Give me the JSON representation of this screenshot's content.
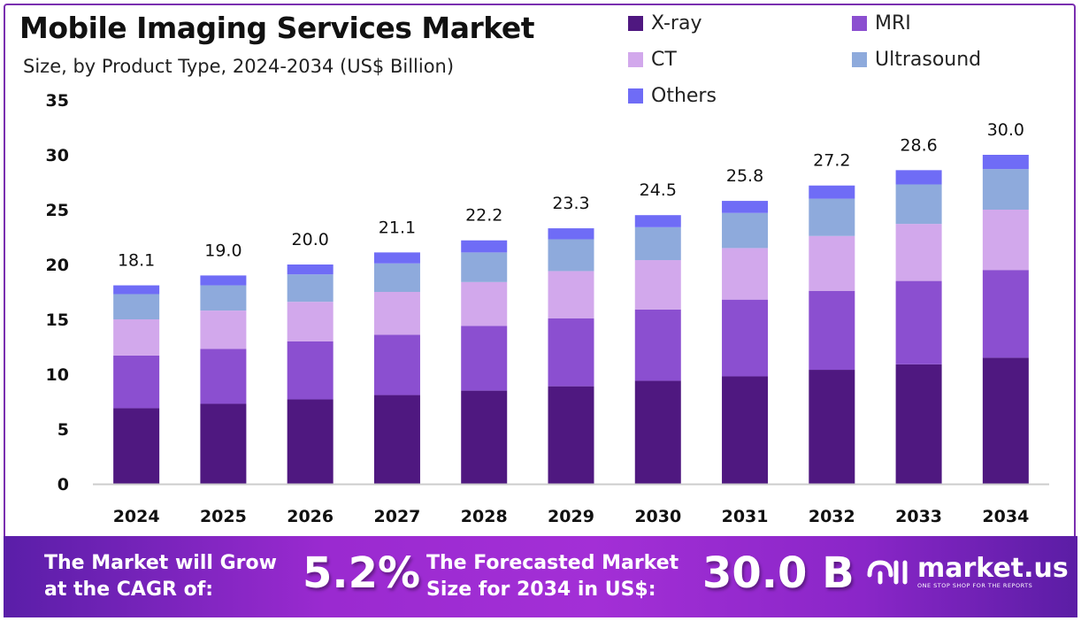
{
  "chart_data": {
    "type": "bar",
    "stacked": true,
    "title": "Mobile Imaging Services Market",
    "subtitle": "Size, by Product Type, 2024-2034 (US$ Billion)",
    "categories": [
      "2024",
      "2025",
      "2026",
      "2027",
      "2028",
      "2029",
      "2030",
      "2031",
      "2032",
      "2033",
      "2034"
    ],
    "series": [
      {
        "name": "X-ray",
        "color": "#4f1880",
        "values": [
          6.9,
          7.3,
          7.7,
          8.1,
          8.5,
          8.9,
          9.4,
          9.8,
          10.4,
          10.9,
          11.5
        ]
      },
      {
        "name": "MRI",
        "color": "#8b4fd0",
        "values": [
          4.8,
          5.0,
          5.3,
          5.5,
          5.9,
          6.2,
          6.5,
          7.0,
          7.2,
          7.6,
          8.0
        ]
      },
      {
        "name": "CT",
        "color": "#d2a8ec",
        "values": [
          3.3,
          3.5,
          3.6,
          3.9,
          4.0,
          4.3,
          4.5,
          4.7,
          5.0,
          5.2,
          5.5
        ]
      },
      {
        "name": "Ultrasound",
        "color": "#8eaadc",
        "values": [
          2.3,
          2.3,
          2.5,
          2.6,
          2.7,
          2.9,
          3.0,
          3.2,
          3.4,
          3.6,
          3.7
        ]
      },
      {
        "name": "Others",
        "color": "#6f6cf6",
        "values": [
          0.8,
          0.9,
          0.9,
          1.0,
          1.1,
          1.0,
          1.1,
          1.1,
          1.2,
          1.3,
          1.3
        ]
      }
    ],
    "totals": [
      "18.1",
      "19.0",
      "20.0",
      "21.1",
      "22.2",
      "23.3",
      "24.5",
      "25.8",
      "27.2",
      "28.6",
      "30.0"
    ],
    "yticks": [
      "0",
      "5",
      "10",
      "15",
      "20",
      "25",
      "30",
      "35"
    ],
    "ylim": [
      0,
      35
    ],
    "grid": false,
    "legend": "top-right"
  },
  "banner": {
    "cagr_label_1": "The Market will Grow",
    "cagr_label_2": "at the CAGR of:",
    "cagr_value": "5.2%",
    "forecast_label_1": "The Forecasted Market",
    "forecast_label_2": "Size for 2034 in US$:",
    "forecast_value": "30.0 B",
    "logo_name": "market.us",
    "logo_tagline": "ONE STOP SHOP FOR THE REPORTS"
  }
}
